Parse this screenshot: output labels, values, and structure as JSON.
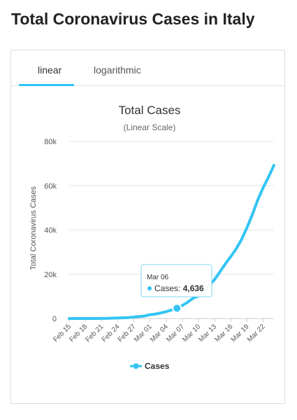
{
  "page": {
    "title": "Total Coronavirus Cases in Italy"
  },
  "tabs": [
    {
      "label": "linear",
      "active": true
    },
    {
      "label": "logarithmic",
      "active": false
    }
  ],
  "colors": {
    "accent": "#2ec4f2",
    "series": "#33c4f4",
    "grid": "#e6e6e6",
    "tooltip_border": "#7fd4f0"
  },
  "chart_data": {
    "type": "line",
    "title": "Total Cases",
    "subtitle": "(Linear Scale)",
    "xlabel": "",
    "ylabel": "Total Coronavirus Cases",
    "ylim": [
      0,
      80000
    ],
    "y_ticks": [
      0,
      20000,
      40000,
      60000,
      80000
    ],
    "y_tick_labels": [
      "0",
      "20k",
      "40k",
      "60k",
      "80k"
    ],
    "x_tick_labels": [
      "Feb 15",
      "Feb 18",
      "Feb 21",
      "Feb 24",
      "Feb 27",
      "Mar 01",
      "Mar 04",
      "Mar 07",
      "Mar 10",
      "Mar 13",
      "Mar 16",
      "Mar 19",
      "Mar 22"
    ],
    "grid": true,
    "legend_position": "bottom",
    "series": [
      {
        "name": "Cases",
        "x": [
          "Feb 15",
          "Feb 16",
          "Feb 17",
          "Feb 18",
          "Feb 19",
          "Feb 20",
          "Feb 21",
          "Feb 22",
          "Feb 23",
          "Feb 24",
          "Feb 25",
          "Feb 26",
          "Feb 27",
          "Feb 28",
          "Feb 29",
          "Mar 01",
          "Mar 02",
          "Mar 03",
          "Mar 04",
          "Mar 05",
          "Mar 06",
          "Mar 07",
          "Mar 08",
          "Mar 09",
          "Mar 10",
          "Mar 11",
          "Mar 12",
          "Mar 13",
          "Mar 14",
          "Mar 15",
          "Mar 16",
          "Mar 17",
          "Mar 18",
          "Mar 19",
          "Mar 20",
          "Mar 21",
          "Mar 22",
          "Mar 23",
          "Mar 24"
        ],
        "values": [
          3,
          3,
          3,
          3,
          3,
          3,
          20,
          79,
          150,
          229,
          322,
          400,
          650,
          888,
          1128,
          1694,
          2036,
          2502,
          3089,
          3858,
          4636,
          5883,
          7375,
          9172,
          10149,
          12462,
          15113,
          17660,
          21157,
          24747,
          27980,
          31506,
          35713,
          41035,
          47021,
          53578,
          59138,
          63927,
          69176
        ]
      }
    ],
    "tooltip": {
      "date": "Mar 06",
      "series": "Cases",
      "value_label": "4,636"
    }
  }
}
